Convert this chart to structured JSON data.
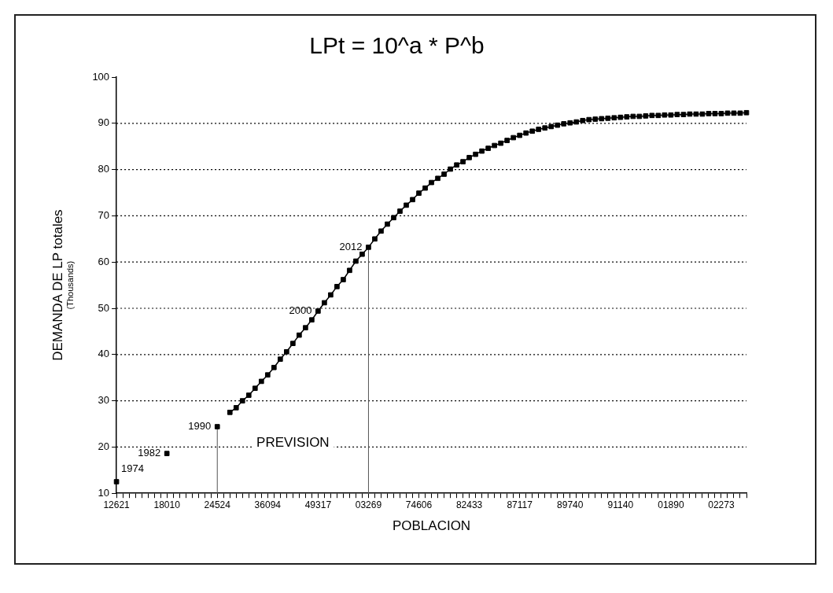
{
  "chart_data": {
    "type": "line",
    "title": "LPt = 10^a * P^b",
    "xlabel": "POBLACION",
    "ylabel": "DEMANDA DE LP totales",
    "ref_lines": [
      {
        "axis": "x",
        "value": "24524",
        "color": "#555555"
      },
      {
        "axis": "x",
        "value": "03269",
        "color": "#555555"
      }
    ],
    "annotations": [
      "(Thousands)",
      "PREVISION",
      {
        "text": "1974",
        "x": "12621",
        "y": 12.5
      },
      {
        "text": "1982",
        "x": "18010",
        "y": 18.6
      },
      {
        "text": "1990",
        "x": "24524",
        "y": 24.4
      },
      {
        "text": "2000",
        "x": "49317",
        "y": 49.4
      },
      {
        "text": "2012",
        "x": "03269",
        "y": 63.2
      }
    ],
    "categories": [
      "12621",
      null,
      null,
      null,
      null,
      null,
      null,
      null,
      "18010",
      null,
      null,
      null,
      null,
      null,
      null,
      null,
      "24524",
      null,
      null,
      null,
      null,
      null,
      null,
      null,
      "36094",
      null,
      null,
      null,
      null,
      null,
      null,
      null,
      "49317",
      null,
      null,
      null,
      null,
      null,
      null,
      null,
      "03269",
      null,
      null,
      null,
      null,
      null,
      null,
      null,
      "74606",
      null,
      null,
      null,
      null,
      null,
      null,
      null,
      "82433",
      null,
      null,
      null,
      null,
      null,
      null,
      null,
      "87117",
      null,
      null,
      null,
      null,
      null,
      null,
      null,
      "89740",
      null,
      null,
      null,
      null,
      null,
      null,
      null,
      "91140",
      null,
      null,
      null,
      null,
      null,
      null,
      null,
      "01890",
      null,
      null,
      null,
      null,
      null,
      null,
      null,
      "02273",
      null,
      null,
      null,
      null
    ],
    "series": [
      {
        "color": "#000000",
        "values": [
          12.5,
          null,
          null,
          null,
          null,
          null,
          null,
          null,
          18.6,
          null,
          null,
          null,
          null,
          null,
          null,
          null,
          24.4,
          null,
          27.5,
          28.5,
          30,
          31.2,
          32.7,
          34.2,
          35.6,
          37.2,
          39,
          40.6,
          42.4,
          44.2,
          45.8,
          47.5,
          49.4,
          51.2,
          52.9,
          54.7,
          56.2,
          58.2,
          60.2,
          61.7,
          63.2,
          65,
          66.7,
          68.2,
          69.6,
          71,
          72.3,
          73.5,
          74.9,
          76,
          77.2,
          78.1,
          79,
          80.1,
          81,
          81.7,
          82.6,
          83.3,
          84,
          84.6,
          85.2,
          85.7,
          86.3,
          86.9,
          87.4,
          87.9,
          88.3,
          88.7,
          89,
          89.3,
          89.6,
          89.9,
          90.1,
          90.3,
          90.6,
          90.8,
          90.9,
          91,
          91.1,
          91.2,
          91.3,
          91.4,
          91.5,
          91.5,
          91.6,
          91.7,
          91.7,
          91.8,
          91.8,
          91.9,
          91.9,
          92,
          92,
          92,
          92.1,
          92.1,
          92.1,
          92.2,
          92.2,
          92.2,
          92.3
        ]
      }
    ],
    "ylim": [
      10,
      100
    ],
    "yticks": [
      10,
      20,
      30,
      40,
      50,
      60,
      70,
      80,
      90,
      100
    ],
    "grid": "y",
    "legend": false,
    "marker": "square",
    "line_style": "solid"
  }
}
